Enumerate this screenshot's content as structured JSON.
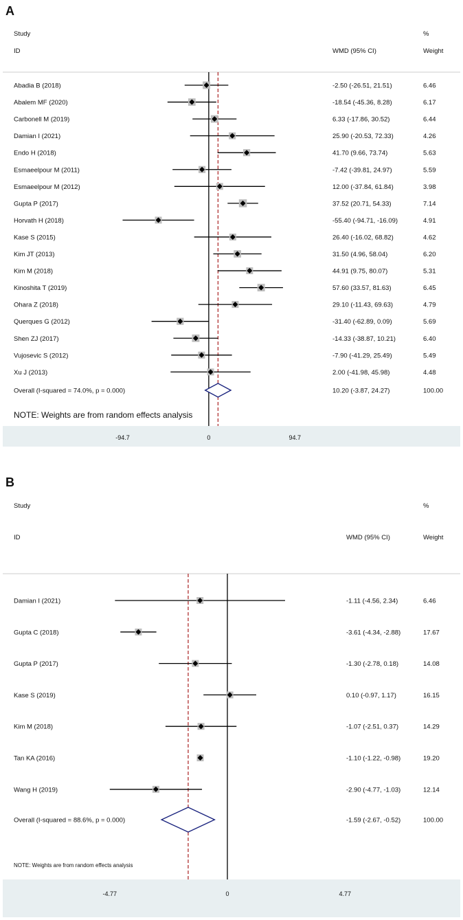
{
  "chart_data": [
    {
      "panel": "A",
      "type": "forest",
      "header": {
        "study": "Study",
        "id": "ID",
        "effect": "WMD (95% CI)",
        "pct": "%",
        "weight": "Weight"
      },
      "xlim": [
        -120,
        130
      ],
      "null_line": 0,
      "ticks": [
        {
          "value": -94.7,
          "label": "-94.7"
        },
        {
          "value": 0,
          "label": "0"
        },
        {
          "value": 94.7,
          "label": "94.7"
        }
      ],
      "studies": [
        {
          "name": "Abadia B (2018)",
          "est": -2.5,
          "lo": -26.51,
          "hi": 21.51,
          "ci_text": "-2.50 (-26.51, 21.51)",
          "weight": "6.46"
        },
        {
          "name": "Abalem MF (2020)",
          "est": -18.54,
          "lo": -45.36,
          "hi": 8.28,
          "ci_text": "-18.54 (-45.36, 8.28)",
          "weight": "6.17"
        },
        {
          "name": "Carbonell M (2019)",
          "est": 6.33,
          "lo": -17.86,
          "hi": 30.52,
          "ci_text": "6.33 (-17.86, 30.52)",
          "weight": "6.44"
        },
        {
          "name": "Damian I (2021)",
          "est": 25.9,
          "lo": -20.53,
          "hi": 72.33,
          "ci_text": "25.90 (-20.53, 72.33)",
          "weight": "4.26"
        },
        {
          "name": "Endo H (2018)",
          "est": 41.7,
          "lo": 9.66,
          "hi": 73.74,
          "ci_text": "41.70 (9.66, 73.74)",
          "weight": "5.63"
        },
        {
          "name": "Esmaeelpour M (2011)",
          "est": -7.42,
          "lo": -39.81,
          "hi": 24.97,
          "ci_text": "-7.42 (-39.81, 24.97)",
          "weight": "5.59"
        },
        {
          "name": "Esmaeelpour M (2012)",
          "est": 12.0,
          "lo": -37.84,
          "hi": 61.84,
          "ci_text": "12.00 (-37.84, 61.84)",
          "weight": "3.98"
        },
        {
          "name": "Gupta P (2017)",
          "est": 37.52,
          "lo": 20.71,
          "hi": 54.33,
          "ci_text": "37.52 (20.71, 54.33)",
          "weight": "7.14"
        },
        {
          "name": "Horvath H (2018)",
          "est": -55.4,
          "lo": -94.71,
          "hi": -16.09,
          "ci_text": "-55.40 (-94.71, -16.09)",
          "weight": "4.91"
        },
        {
          "name": "Kase S (2015)",
          "est": 26.4,
          "lo": -16.02,
          "hi": 68.82,
          "ci_text": "26.40 (-16.02, 68.82)",
          "weight": "4.62"
        },
        {
          "name": "Kim JT (2013)",
          "est": 31.5,
          "lo": 4.96,
          "hi": 58.04,
          "ci_text": "31.50 (4.96, 58.04)",
          "weight": "6.20"
        },
        {
          "name": "Kim M (2018)",
          "est": 44.91,
          "lo": 9.75,
          "hi": 80.07,
          "ci_text": "44.91 (9.75, 80.07)",
          "weight": "5.31"
        },
        {
          "name": "Kinoshita T (2019)",
          "est": 57.6,
          "lo": 33.57,
          "hi": 81.63,
          "ci_text": "57.60 (33.57, 81.63)",
          "weight": "6.45"
        },
        {
          "name": "Ohara Z (2018)",
          "est": 29.1,
          "lo": -11.43,
          "hi": 69.63,
          "ci_text": "29.10 (-11.43, 69.63)",
          "weight": "4.79"
        },
        {
          "name": "Querques G (2012)",
          "est": -31.4,
          "lo": -62.89,
          "hi": 0.09,
          "ci_text": "-31.40 (-62.89, 0.09)",
          "weight": "5.69"
        },
        {
          "name": "Shen ZJ (2017)",
          "est": -14.33,
          "lo": -38.87,
          "hi": 10.21,
          "ci_text": "-14.33 (-38.87, 10.21)",
          "weight": "6.40"
        },
        {
          "name": "Vujosevic S (2012)",
          "est": -7.9,
          "lo": -41.29,
          "hi": 25.49,
          "ci_text": "-7.90 (-41.29, 25.49)",
          "weight": "5.49"
        },
        {
          "name": "Xu J (2013)",
          "est": 2.0,
          "lo": -41.98,
          "hi": 45.98,
          "ci_text": "2.00 (-41.98, 45.98)",
          "weight": "4.48"
        }
      ],
      "overall": {
        "label": "Overall  (I-squared = 74.0%, p = 0.000)",
        "est": 10.2,
        "lo": -3.87,
        "hi": 24.27,
        "ci_text": "10.20 (-3.87, 24.27)",
        "weight": "100.00"
      },
      "note": "NOTE: Weights are from random effects analysis",
      "colors": {
        "diamond": "#1a237e",
        "pooled_line": "#b03030",
        "box": "#bdbdbd",
        "footer": "#e8eff1"
      }
    },
    {
      "panel": "B",
      "type": "forest",
      "header": {
        "study": "Study",
        "id": "ID",
        "effect": "WMD (95% CI)",
        "pct": "%",
        "weight": "Weight"
      },
      "xlim": [
        -5.6,
        5.6
      ],
      "null_line": 0,
      "ticks": [
        {
          "value": -4.77,
          "label": "-4.77"
        },
        {
          "value": 0,
          "label": "0"
        },
        {
          "value": 4.77,
          "label": "4.77"
        }
      ],
      "studies": [
        {
          "name": "Damian I (2021)",
          "est": -1.11,
          "lo": -4.56,
          "hi": 2.34,
          "ci_text": "-1.11 (-4.56, 2.34)",
          "weight": "6.46"
        },
        {
          "name": "Gupta C (2018)",
          "est": -3.61,
          "lo": -4.34,
          "hi": -2.88,
          "ci_text": "-3.61 (-4.34, -2.88)",
          "weight": "17.67"
        },
        {
          "name": "Gupta P (2017)",
          "est": -1.3,
          "lo": -2.78,
          "hi": 0.18,
          "ci_text": "-1.30 (-2.78, 0.18)",
          "weight": "14.08"
        },
        {
          "name": "Kase S (2019)",
          "est": 0.1,
          "lo": -0.97,
          "hi": 1.17,
          "ci_text": "0.10 (-0.97, 1.17)",
          "weight": "16.15"
        },
        {
          "name": "Kim M (2018)",
          "est": -1.07,
          "lo": -2.51,
          "hi": 0.37,
          "ci_text": "-1.07 (-2.51, 0.37)",
          "weight": "14.29"
        },
        {
          "name": "Tan KA (2016)",
          "est": -1.1,
          "lo": -1.22,
          "hi": -0.98,
          "ci_text": "-1.10 (-1.22, -0.98)",
          "weight": "19.20"
        },
        {
          "name": "Wang H (2019)",
          "est": -2.9,
          "lo": -4.77,
          "hi": -1.03,
          "ci_text": "-2.90 (-4.77, -1.03)",
          "weight": "12.14"
        }
      ],
      "overall": {
        "label": "Overall  (I-squared = 88.6%, p = 0.000)",
        "est": -1.59,
        "lo": -2.67,
        "hi": -0.52,
        "ci_text": "-1.59 (-2.67, -0.52)",
        "weight": "100.00"
      },
      "note": "NOTE: Weights are from random effects analysis",
      "colors": {
        "diamond": "#1a237e",
        "pooled_line": "#b03030",
        "box": "#bdbdbd",
        "footer": "#e8eff1"
      }
    }
  ]
}
